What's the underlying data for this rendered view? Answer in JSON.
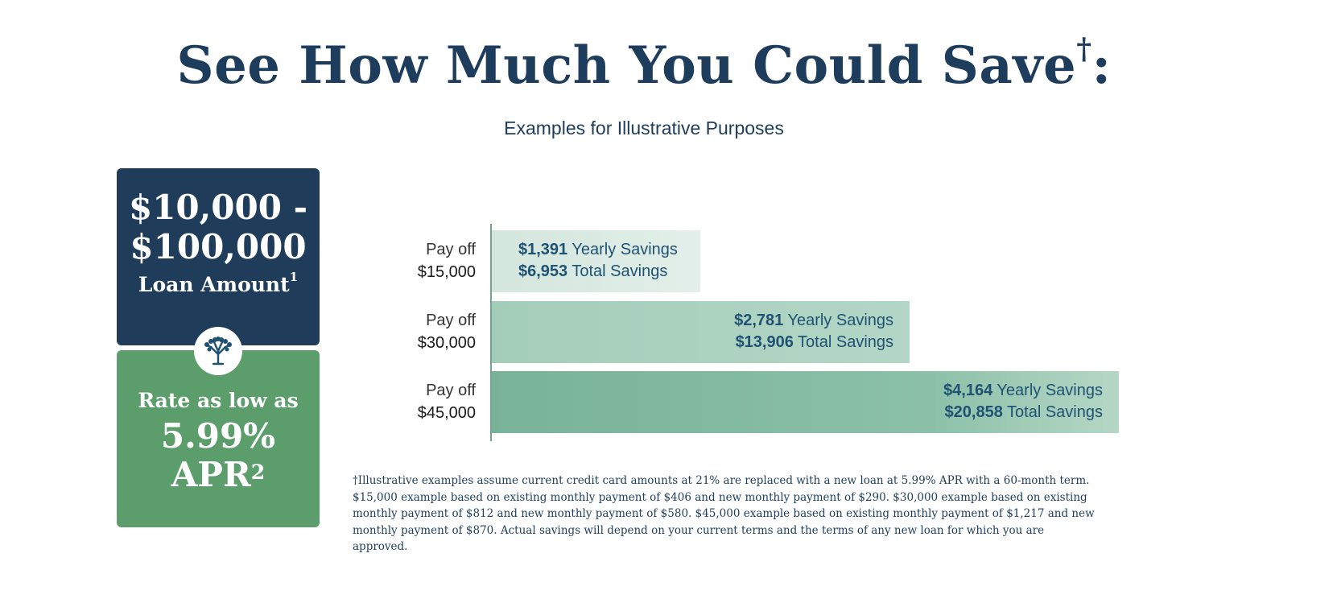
{
  "header": {
    "title": "See How Much You Could Save",
    "title_mark": "†",
    "title_suffix": ":",
    "subtitle": "Examples for Illustrative Purposes"
  },
  "loan_card": {
    "amount_line1": "$10,000 -",
    "amount_line2": "$100,000",
    "label": "Loan Amount",
    "footnote_mark": "1"
  },
  "rate_card": {
    "label": "Rate as low as",
    "value": "5.99%",
    "unit": "APR",
    "footnote_mark": "2"
  },
  "badge_icon": "tree-icon",
  "colors": {
    "navy": "#1f3c5b",
    "green": "#5b9e6c",
    "text_blue": "#1f5272"
  },
  "chart_data": {
    "type": "bar",
    "orientation": "horizontal",
    "categories": [
      "$15,000",
      "$30,000",
      "$45,000"
    ],
    "category_prefix": "Pay off",
    "series": [
      {
        "name": "Yearly Savings",
        "values": [
          1391,
          2781,
          4164
        ],
        "labels": [
          "$1,391",
          "$2,781",
          "$4,164"
        ]
      },
      {
        "name": "Total Savings",
        "values": [
          6953,
          13906,
          20858
        ],
        "labels": [
          "$6,953",
          "$13,906",
          "$20,858"
        ]
      }
    ],
    "bar_series": "Total Savings",
    "bar_colors": [
      "#dbeae4",
      "#a9d0bd",
      "#7fb89e"
    ],
    "grid": false
  },
  "footnote": "†Illustrative examples assume current credit card amounts at 21% are replaced with a new loan at 5.99% APR with a 60-month term. $15,000 example based on existing monthly payment of $406 and new monthly payment of $290. $30,000 example based on existing monthly payment of $812 and new monthly payment of $580. $45,000 example based on existing monthly payment of $1,217 and new monthly payment of $870. Actual savings will depend on your current terms and the terms of any new loan for which you are approved."
}
